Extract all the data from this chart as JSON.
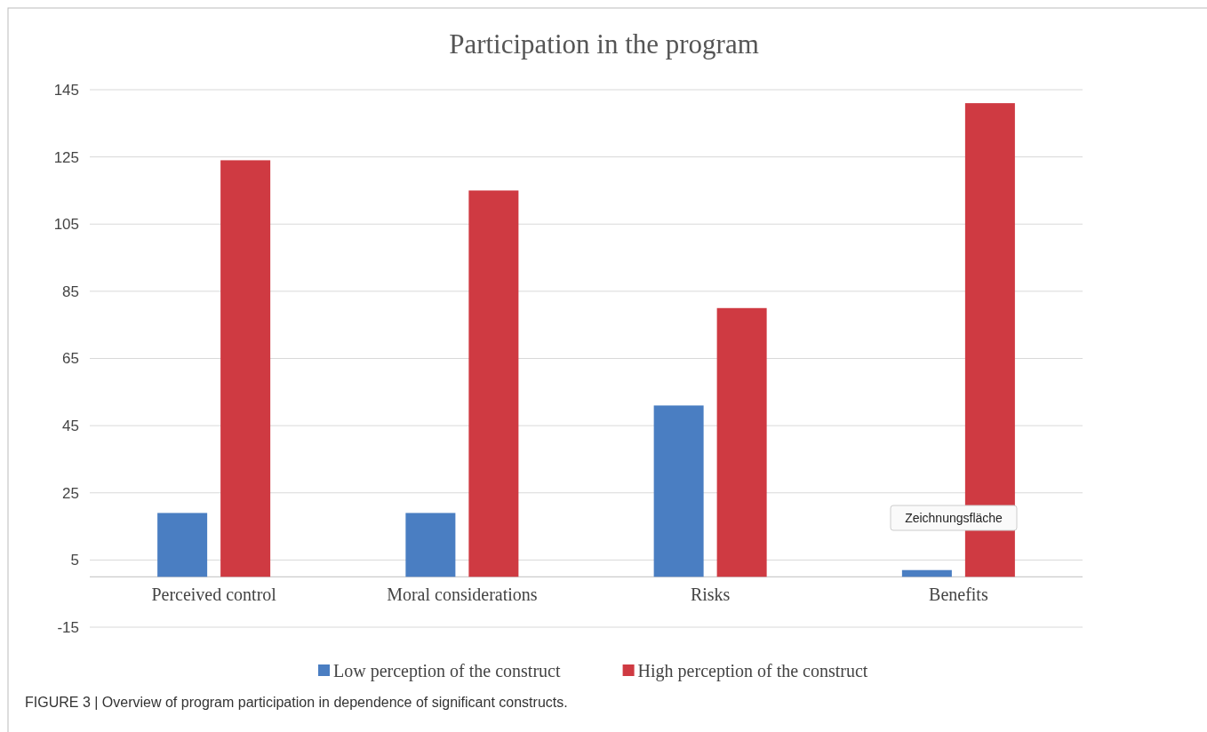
{
  "chart_data": {
    "type": "bar",
    "title": "Participation in the program",
    "categories": [
      "Perceived control",
      "Moral considerations",
      "Risks",
      "Benefits"
    ],
    "series": [
      {
        "name": "Low perception of the construct",
        "color": "#4a7ec2",
        "values": [
          19,
          19,
          51,
          2
        ]
      },
      {
        "name": "High perception of the construct",
        "color": "#cf3a42",
        "values": [
          124,
          115,
          80,
          141
        ]
      }
    ],
    "ylim": [
      -15,
      145
    ],
    "yticks": [
      -15,
      5,
      25,
      45,
      65,
      85,
      105,
      125,
      145
    ],
    "grid": "y",
    "legend": "bottom",
    "annotations": [
      "Zeichnungsfläche",
      "FIGURE 3 | Overview of program participation in dependence of significant constructs."
    ]
  }
}
